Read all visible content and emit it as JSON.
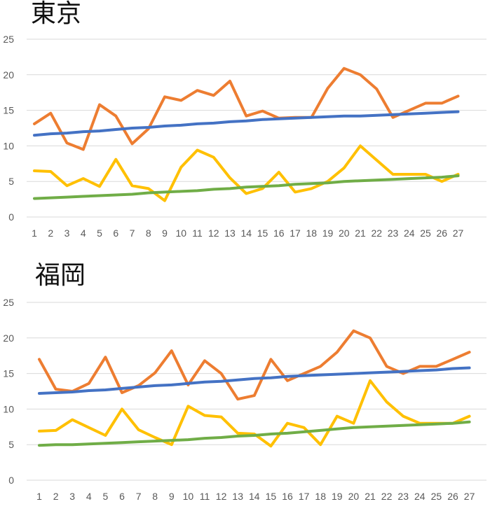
{
  "colors": {
    "grid": "#d9d9d9",
    "tick_text": "#595959",
    "orange": "#ED7D31",
    "blue": "#4472C4",
    "yellow": "#FFC000",
    "green": "#70AD47"
  },
  "chart_data": [
    {
      "type": "line",
      "title": "東京",
      "xlabel": "",
      "ylabel": "",
      "ylim": [
        0,
        25
      ],
      "yticks": [
        "0",
        "5",
        "10",
        "15",
        "20",
        "25"
      ],
      "categories": [
        "1",
        "2",
        "3",
        "4",
        "5",
        "6",
        "7",
        "8",
        "9",
        "10",
        "11",
        "12",
        "13",
        "14",
        "15",
        "16",
        "17",
        "18",
        "19",
        "20",
        "21",
        "22",
        "23",
        "24",
        "25",
        "26",
        "27"
      ],
      "grid": true,
      "legend": "none",
      "series": [
        {
          "color": "#ED7D31",
          "values": [
            13.1,
            14.6,
            10.4,
            9.5,
            15.8,
            14.2,
            10.3,
            12.4,
            16.9,
            16.4,
            17.8,
            17.1,
            19.1,
            14.2,
            14.9,
            13.9,
            14.0,
            14.0,
            18.1,
            20.9,
            20.0,
            18.0,
            14.0,
            15.0,
            16.0,
            16.0,
            17.0
          ]
        },
        {
          "color": "#4472C4",
          "values": [
            11.5,
            11.7,
            11.8,
            12.0,
            12.1,
            12.3,
            12.5,
            12.6,
            12.8,
            12.9,
            13.1,
            13.2,
            13.4,
            13.5,
            13.7,
            13.8,
            13.9,
            14.0,
            14.1,
            14.2,
            14.2,
            14.3,
            14.4,
            14.5,
            14.6,
            14.7,
            14.8
          ]
        },
        {
          "color": "#FFC000",
          "values": [
            6.5,
            6.4,
            4.4,
            5.4,
            4.3,
            8.1,
            4.4,
            4.0,
            2.3,
            7.0,
            9.4,
            8.4,
            5.5,
            3.3,
            4.0,
            6.3,
            3.5,
            4.0,
            5.0,
            6.9,
            10.0,
            8.0,
            6.0,
            6.0,
            6.0,
            5.0,
            6.0
          ]
        },
        {
          "color": "#70AD47",
          "values": [
            2.6,
            2.7,
            2.8,
            2.9,
            3.0,
            3.1,
            3.2,
            3.4,
            3.5,
            3.6,
            3.7,
            3.9,
            4.0,
            4.2,
            4.3,
            4.4,
            4.6,
            4.7,
            4.8,
            5.0,
            5.1,
            5.2,
            5.3,
            5.4,
            5.5,
            5.6,
            5.8
          ]
        }
      ]
    },
    {
      "type": "line",
      "title": "福岡",
      "xlabel": "",
      "ylabel": "",
      "ylim": [
        0,
        25
      ],
      "yticks": [
        "0",
        "5",
        "10",
        "15",
        "20",
        "25"
      ],
      "categories": [
        "1",
        "2",
        "3",
        "4",
        "5",
        "6",
        "7",
        "8",
        "9",
        "10",
        "11",
        "12",
        "13",
        "14",
        "15",
        "16",
        "17",
        "18",
        "19",
        "20",
        "21",
        "22",
        "23",
        "24",
        "25",
        "26",
        "27"
      ],
      "grid": true,
      "legend": "none",
      "series": [
        {
          "color": "#ED7D31",
          "values": [
            17.0,
            12.8,
            12.5,
            13.6,
            17.3,
            12.3,
            13.3,
            15.1,
            18.2,
            13.4,
            16.8,
            15.0,
            11.4,
            11.9,
            17.0,
            14.0,
            15.0,
            16.0,
            18.0,
            21.0,
            20.0,
            16.0,
            15.0,
            16.0,
            16.0,
            17.0,
            18.0
          ]
        },
        {
          "color": "#4472C4",
          "values": [
            12.2,
            12.3,
            12.4,
            12.6,
            12.7,
            12.9,
            13.1,
            13.3,
            13.4,
            13.6,
            13.8,
            13.9,
            14.1,
            14.3,
            14.4,
            14.6,
            14.7,
            14.8,
            14.9,
            15.0,
            15.1,
            15.2,
            15.3,
            15.4,
            15.5,
            15.7,
            15.8
          ]
        },
        {
          "color": "#FFC000",
          "values": [
            6.9,
            7.0,
            8.5,
            7.4,
            6.3,
            10.0,
            7.1,
            6.0,
            5.0,
            10.4,
            9.1,
            8.9,
            6.6,
            6.5,
            4.8,
            8.0,
            7.4,
            5.0,
            9.0,
            8.0,
            14.0,
            11.0,
            9.0,
            8.0,
            8.0,
            8.0,
            9.0
          ]
        },
        {
          "color": "#70AD47",
          "values": [
            4.9,
            5.0,
            5.0,
            5.1,
            5.2,
            5.3,
            5.4,
            5.5,
            5.6,
            5.7,
            5.9,
            6.0,
            6.2,
            6.3,
            6.5,
            6.6,
            6.8,
            7.0,
            7.2,
            7.4,
            7.5,
            7.6,
            7.7,
            7.8,
            7.9,
            8.0,
            8.2
          ]
        }
      ]
    }
  ]
}
